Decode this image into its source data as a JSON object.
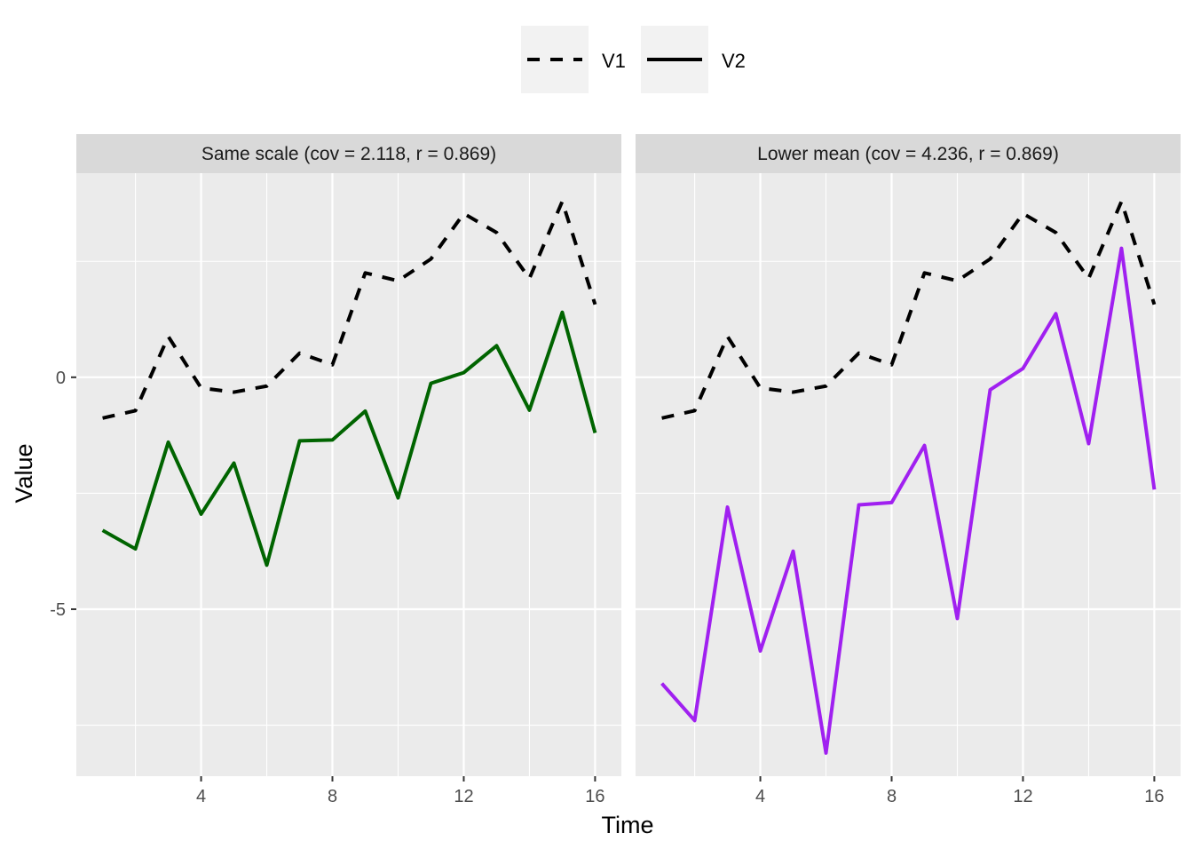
{
  "chart_data": {
    "type": "line",
    "xlabel": "Time",
    "ylabel": "Value",
    "x": [
      1,
      2,
      3,
      4,
      5,
      6,
      7,
      8,
      9,
      10,
      11,
      12,
      13,
      14,
      15,
      16
    ],
    "xticks": [
      4,
      8,
      12,
      16
    ],
    "yticks": [
      0,
      -5
    ],
    "ylim": [
      -8.6,
      4.4
    ],
    "xlim": [
      0.2,
      16.8
    ],
    "grid": true,
    "legend": {
      "position": "top",
      "entries": [
        {
          "label": "V1",
          "linetype": "dashed"
        },
        {
          "label": "V2",
          "linetype": "solid"
        }
      ]
    },
    "panels": [
      {
        "strip": "Same scale (cov = 2.118, r = 0.869)",
        "series": [
          {
            "name": "V1",
            "linetype": "dashed",
            "color": "#000000",
            "values": [
              -0.88,
              -0.72,
              0.88,
              -0.23,
              -0.32,
              -0.19,
              0.52,
              0.27,
              2.25,
              2.08,
              2.55,
              3.53,
              3.12,
              2.13,
              3.79,
              1.57
            ]
          },
          {
            "name": "V2",
            "linetype": "solid",
            "color": "#006400",
            "values": [
              -3.3,
              -3.7,
              -1.4,
              -2.95,
              -1.85,
              -4.05,
              -1.37,
              -1.35,
              -0.73,
              -2.6,
              -0.13,
              0.1,
              0.68,
              -0.71,
              1.4,
              -1.2
            ]
          }
        ]
      },
      {
        "strip": "Lower mean (cov = 4.236, r = 0.869)",
        "series": [
          {
            "name": "V1",
            "linetype": "dashed",
            "color": "#000000",
            "values": [
              -0.88,
              -0.72,
              0.88,
              -0.23,
              -0.32,
              -0.19,
              0.52,
              0.27,
              2.25,
              2.08,
              2.55,
              3.53,
              3.12,
              2.13,
              3.79,
              1.57
            ]
          },
          {
            "name": "V2",
            "linetype": "solid",
            "color": "#A020F0",
            "values": [
              -6.6,
              -7.4,
              -2.8,
              -5.9,
              -3.75,
              -8.1,
              -2.75,
              -2.7,
              -1.47,
              -5.2,
              -0.27,
              0.19,
              1.37,
              -1.43,
              2.78,
              -2.42
            ]
          }
        ]
      }
    ]
  }
}
